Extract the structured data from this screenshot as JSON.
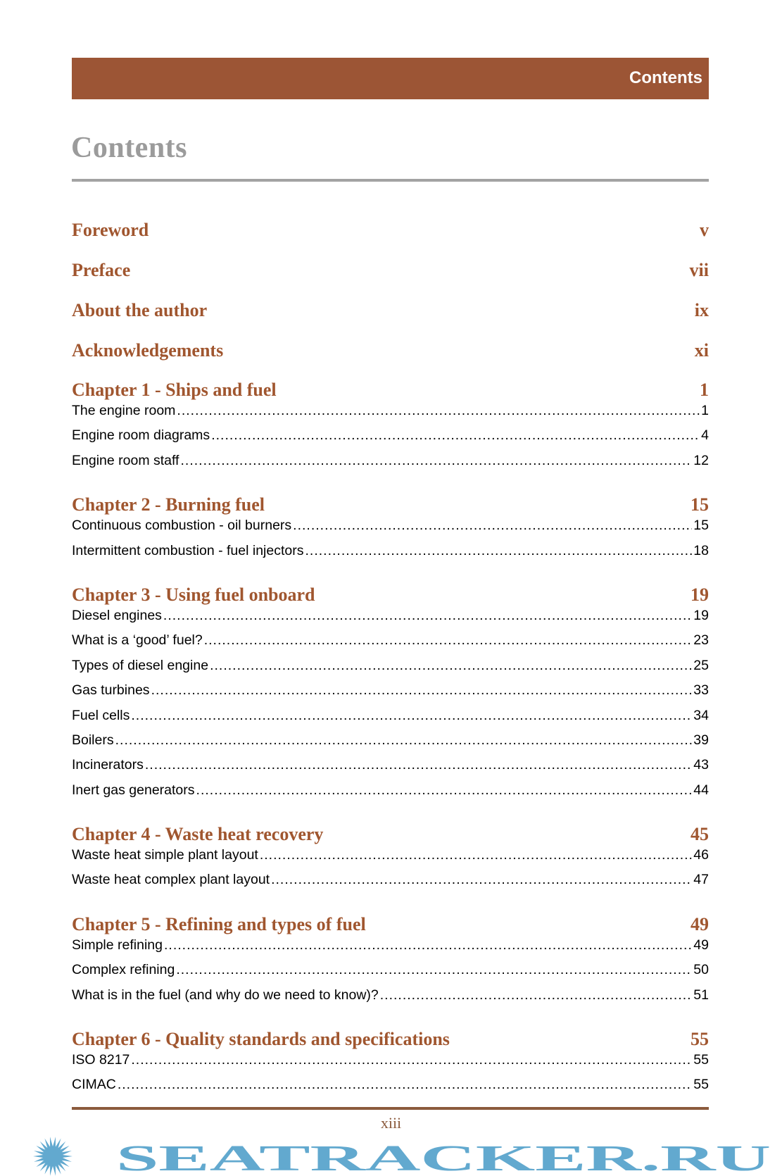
{
  "header": {
    "label": "Contents"
  },
  "page_title": "Contents",
  "front_matter": [
    {
      "label": "Foreword",
      "page": "v"
    },
    {
      "label": "Preface",
      "page": "vii"
    },
    {
      "label": "About the author",
      "page": "ix"
    },
    {
      "label": "Acknowledgements",
      "page": "xi"
    }
  ],
  "chapters": [
    {
      "label": "Chapter 1 - Ships and fuel",
      "page": "1",
      "sections": [
        {
          "label": "The engine room",
          "page": "1"
        },
        {
          "label": "Engine room diagrams",
          "page": "4"
        },
        {
          "label": "Engine room staff",
          "page": "12"
        }
      ]
    },
    {
      "label": "Chapter 2 - Burning fuel",
      "page": "15",
      "sections": [
        {
          "label": "Continuous combustion - oil burners",
          "page": "15"
        },
        {
          "label": "Intermittent combustion - fuel injectors",
          "page": "18"
        }
      ]
    },
    {
      "label": "Chapter 3 - Using fuel onboard",
      "page": "19",
      "sections": [
        {
          "label": "Diesel engines",
          "page": "19"
        },
        {
          "label": "What is a ‘good’ fuel?",
          "page": "23"
        },
        {
          "label": "Types of diesel engine",
          "page": "25"
        },
        {
          "label": "Gas turbines",
          "page": "33"
        },
        {
          "label": "Fuel cells",
          "page": "34"
        },
        {
          "label": "Boilers",
          "page": "39"
        },
        {
          "label": "Incinerators",
          "page": "43"
        },
        {
          "label": "Inert gas generators",
          "page": "44"
        }
      ]
    },
    {
      "label": "Chapter 4 - Waste heat recovery",
      "page": "45",
      "sections": [
        {
          "label": "Waste heat simple plant layout",
          "page": "46"
        },
        {
          "label": "Waste heat complex plant layout",
          "page": "47"
        }
      ]
    },
    {
      "label": "Chapter 5 - Refining and types of fuel",
      "page": "49",
      "sections": [
        {
          "label": "Simple refining",
          "page": "49"
        },
        {
          "label": "Complex refining",
          "page": "50"
        },
        {
          "label": "What is in the fuel (and why do we need to know)?",
          "page": "51"
        }
      ]
    },
    {
      "label": "Chapter 6 - Quality standards and specifications",
      "page": "55",
      "sections": [
        {
          "label": "ISO 8217",
          "page": "55"
        },
        {
          "label": "CIMAC",
          "page": "55"
        }
      ]
    }
  ],
  "footer": {
    "page_number": "xiii"
  },
  "watermark": {
    "text": "SEATRACKER.RU",
    "color": "#62a9cf"
  },
  "colors": {
    "accent": "#9c5535",
    "heading": "#a0562f",
    "title": "#9b9b9b"
  }
}
